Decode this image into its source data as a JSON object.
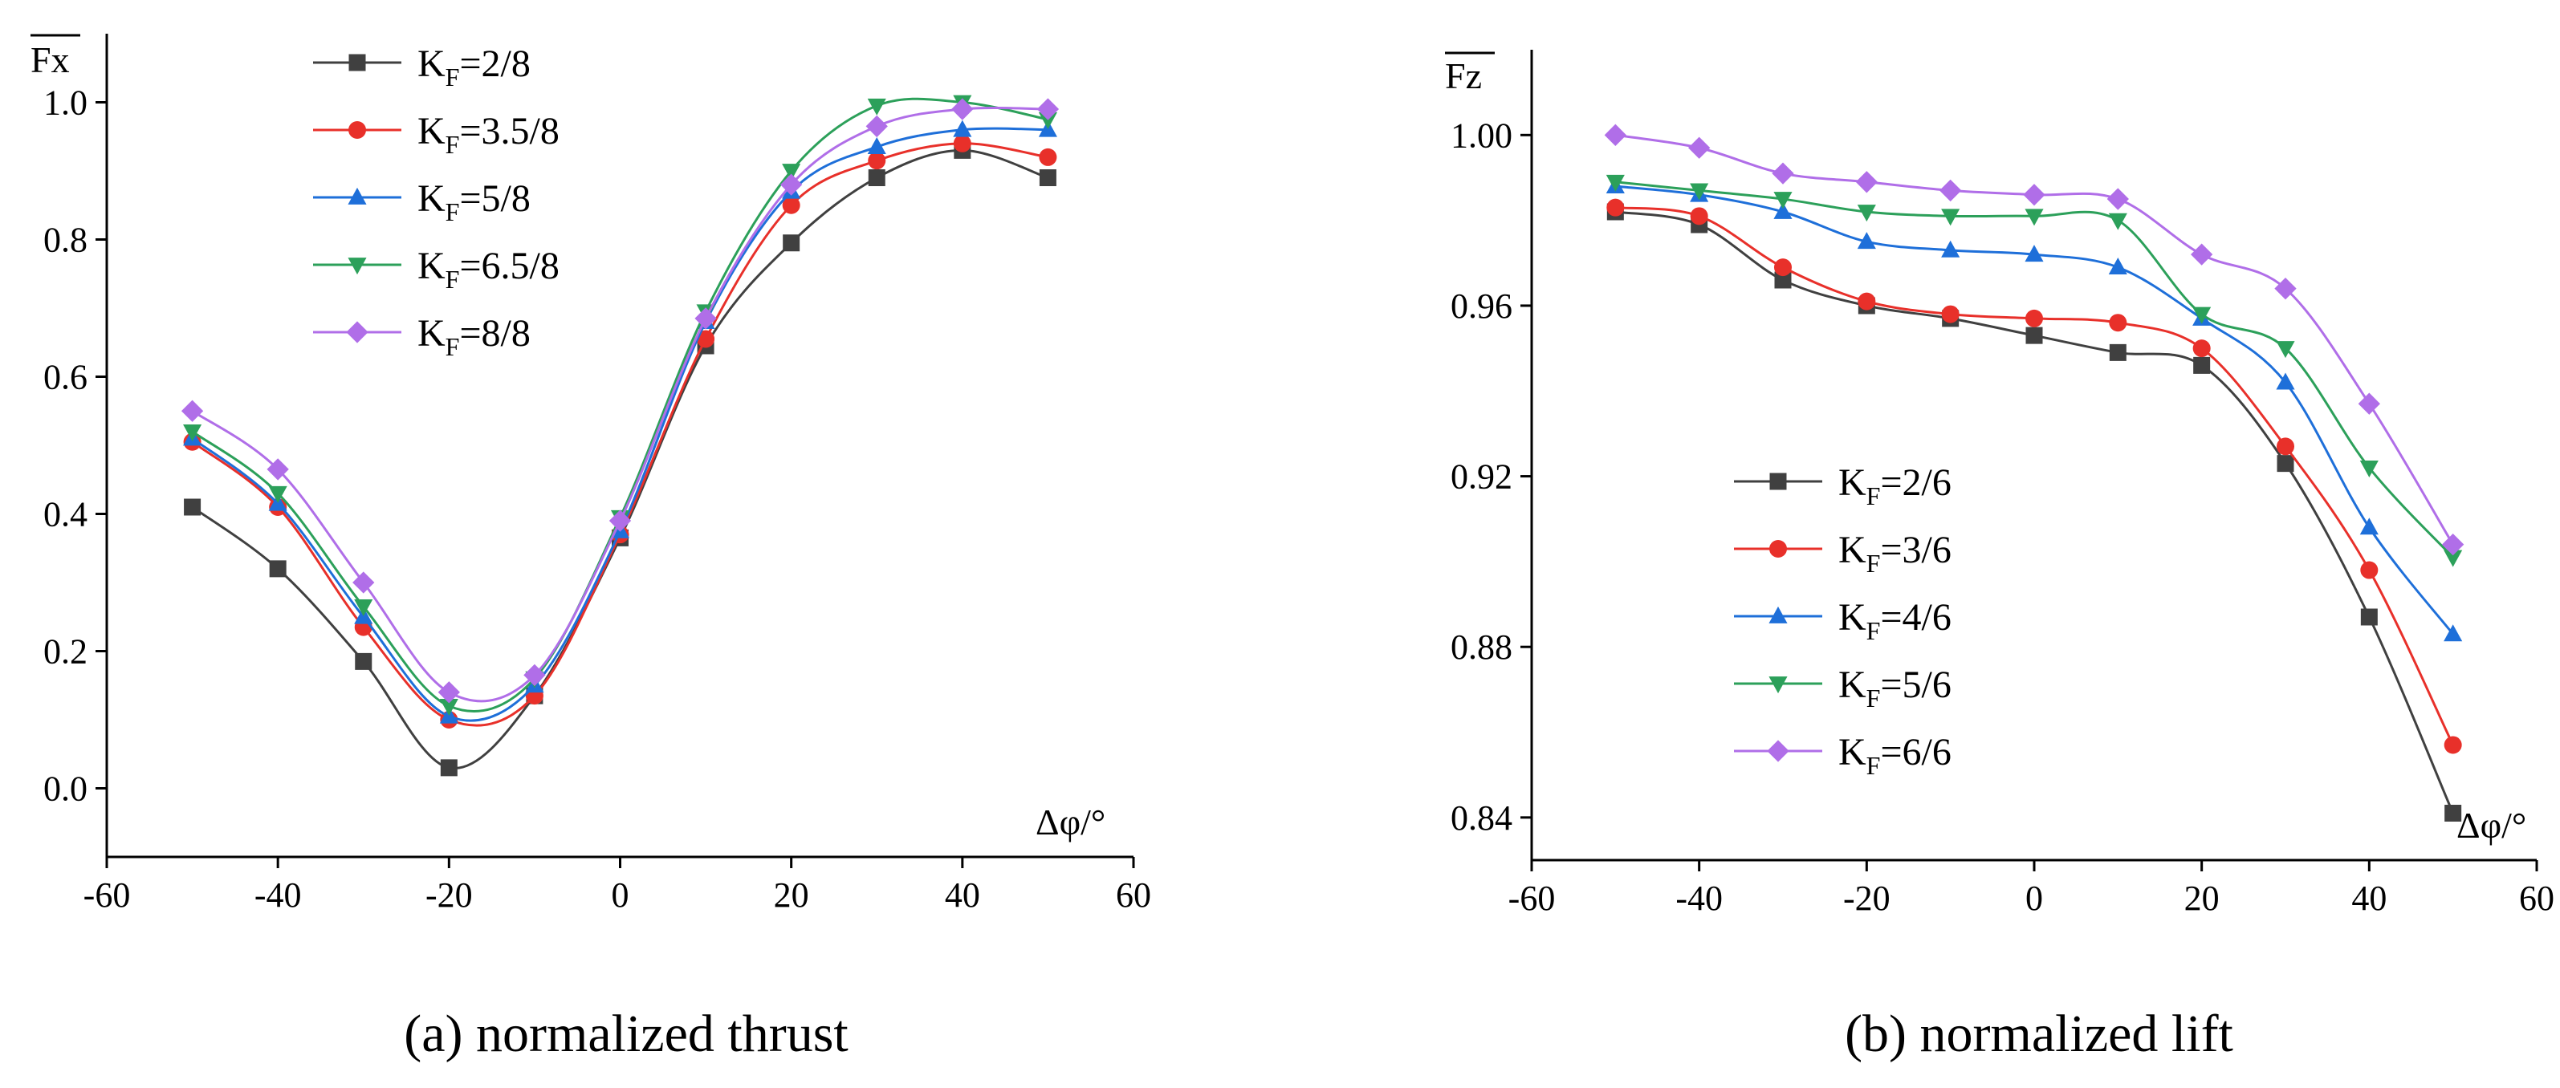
{
  "chart_data": [
    {
      "type": "line",
      "panel": "a",
      "caption": "(a) normalized thrust",
      "ylabel": "Fx",
      "xlabel": "Δφ/°",
      "xlim": [
        -60,
        60
      ],
      "ylim": [
        -0.1,
        1.1
      ],
      "xticks": [
        -60,
        -40,
        -20,
        0,
        20,
        40,
        60
      ],
      "xtick_labels": [
        "-60",
        "-40",
        "-20",
        "0",
        "20",
        "40",
        "60"
      ],
      "yticks": [
        0.0,
        0.2,
        0.4,
        0.6,
        0.8,
        1.0
      ],
      "ytick_labels": [
        "0.0",
        "0.2",
        "0.4",
        "0.6",
        "0.8",
        "1.0"
      ],
      "legend_position": "top-left",
      "x": [
        -50,
        -40,
        -30,
        -20,
        -10,
        0,
        10,
        20,
        30,
        40,
        50
      ],
      "series": [
        {
          "name": "KF=2/8",
          "label_main": "K",
          "label_sub": "F",
          "label_tail": "=2/8",
          "color": "#404040",
          "marker": "square",
          "values": [
            0.41,
            0.32,
            0.185,
            0.03,
            0.135,
            0.365,
            0.645,
            0.795,
            0.89,
            0.93,
            0.89
          ]
        },
        {
          "name": "KF=3.5/8",
          "label_main": "K",
          "label_sub": "F",
          "label_tail": "=3.5/8",
          "color": "#e8302a",
          "marker": "circle",
          "values": [
            0.505,
            0.41,
            0.235,
            0.1,
            0.135,
            0.37,
            0.655,
            0.85,
            0.915,
            0.94,
            0.92
          ]
        },
        {
          "name": "KF=5/8",
          "label_main": "K",
          "label_sub": "F",
          "label_tail": "=5/8",
          "color": "#1e6fd9",
          "marker": "triangle-up",
          "values": [
            0.51,
            0.415,
            0.25,
            0.105,
            0.15,
            0.375,
            0.68,
            0.87,
            0.935,
            0.96,
            0.96
          ]
        },
        {
          "name": "KF=6.5/8",
          "label_main": "K",
          "label_sub": "F",
          "label_tail": "=6.5/8",
          "color": "#2ca05a",
          "marker": "triangle-down",
          "values": [
            0.52,
            0.43,
            0.265,
            0.12,
            0.16,
            0.395,
            0.695,
            0.9,
            0.995,
            1.0,
            0.975
          ]
        },
        {
          "name": "KF=8/8",
          "label_main": "K",
          "label_sub": "F",
          "label_tail": "=8/8",
          "color": "#b06ee8",
          "marker": "diamond",
          "values": [
            0.55,
            0.465,
            0.3,
            0.14,
            0.165,
            0.39,
            0.685,
            0.88,
            0.965,
            0.99,
            0.99
          ]
        }
      ]
    },
    {
      "type": "line",
      "panel": "b",
      "caption": "(b) normalized lift",
      "ylabel": "Fz",
      "xlabel": "Δφ/°",
      "xlim": [
        -60,
        60
      ],
      "ylim": [
        0.83,
        1.02
      ],
      "xticks": [
        -60,
        -40,
        -20,
        0,
        20,
        40,
        60
      ],
      "xtick_labels": [
        "-60",
        "-40",
        "-20",
        "0",
        "20",
        "40",
        "60"
      ],
      "yticks": [
        0.84,
        0.88,
        0.92,
        0.96,
        1.0
      ],
      "ytick_labels": [
        "0.84",
        "0.88",
        "0.92",
        "0.96",
        "1.00"
      ],
      "legend_position": "bottom-left",
      "x": [
        -50,
        -40,
        -30,
        -20,
        -10,
        0,
        10,
        20,
        30,
        40,
        50
      ],
      "series": [
        {
          "name": "KF=2/6",
          "label_main": "K",
          "label_sub": "F",
          "label_tail": "=2/6",
          "color": "#404040",
          "marker": "square",
          "values": [
            0.982,
            0.979,
            0.966,
            0.96,
            0.957,
            0.953,
            0.949,
            0.946,
            0.923,
            0.887,
            0.841
          ]
        },
        {
          "name": "KF=3/6",
          "label_main": "K",
          "label_sub": "F",
          "label_tail": "=3/6",
          "color": "#e8302a",
          "marker": "circle",
          "values": [
            0.983,
            0.981,
            0.969,
            0.961,
            0.958,
            0.957,
            0.956,
            0.95,
            0.927,
            0.898,
            0.857
          ]
        },
        {
          "name": "KF=4/6",
          "label_main": "K",
          "label_sub": "F",
          "label_tail": "=4/6",
          "color": "#1e6fd9",
          "marker": "triangle-up",
          "values": [
            0.988,
            0.986,
            0.982,
            0.975,
            0.973,
            0.972,
            0.969,
            0.957,
            0.942,
            0.908,
            0.883
          ]
        },
        {
          "name": "KF=5/6",
          "label_main": "K",
          "label_sub": "F",
          "label_tail": "=5/6",
          "color": "#2ca05a",
          "marker": "triangle-down",
          "values": [
            0.989,
            0.987,
            0.985,
            0.982,
            0.981,
            0.981,
            0.98,
            0.958,
            0.95,
            0.922,
            0.901
          ]
        },
        {
          "name": "KF=6/6",
          "label_main": "K",
          "label_sub": "F",
          "label_tail": "=6/6",
          "color": "#b06ee8",
          "marker": "diamond",
          "values": [
            1.0,
            0.997,
            0.991,
            0.989,
            0.987,
            0.986,
            0.985,
            0.972,
            0.964,
            0.937,
            0.904
          ]
        }
      ]
    }
  ]
}
